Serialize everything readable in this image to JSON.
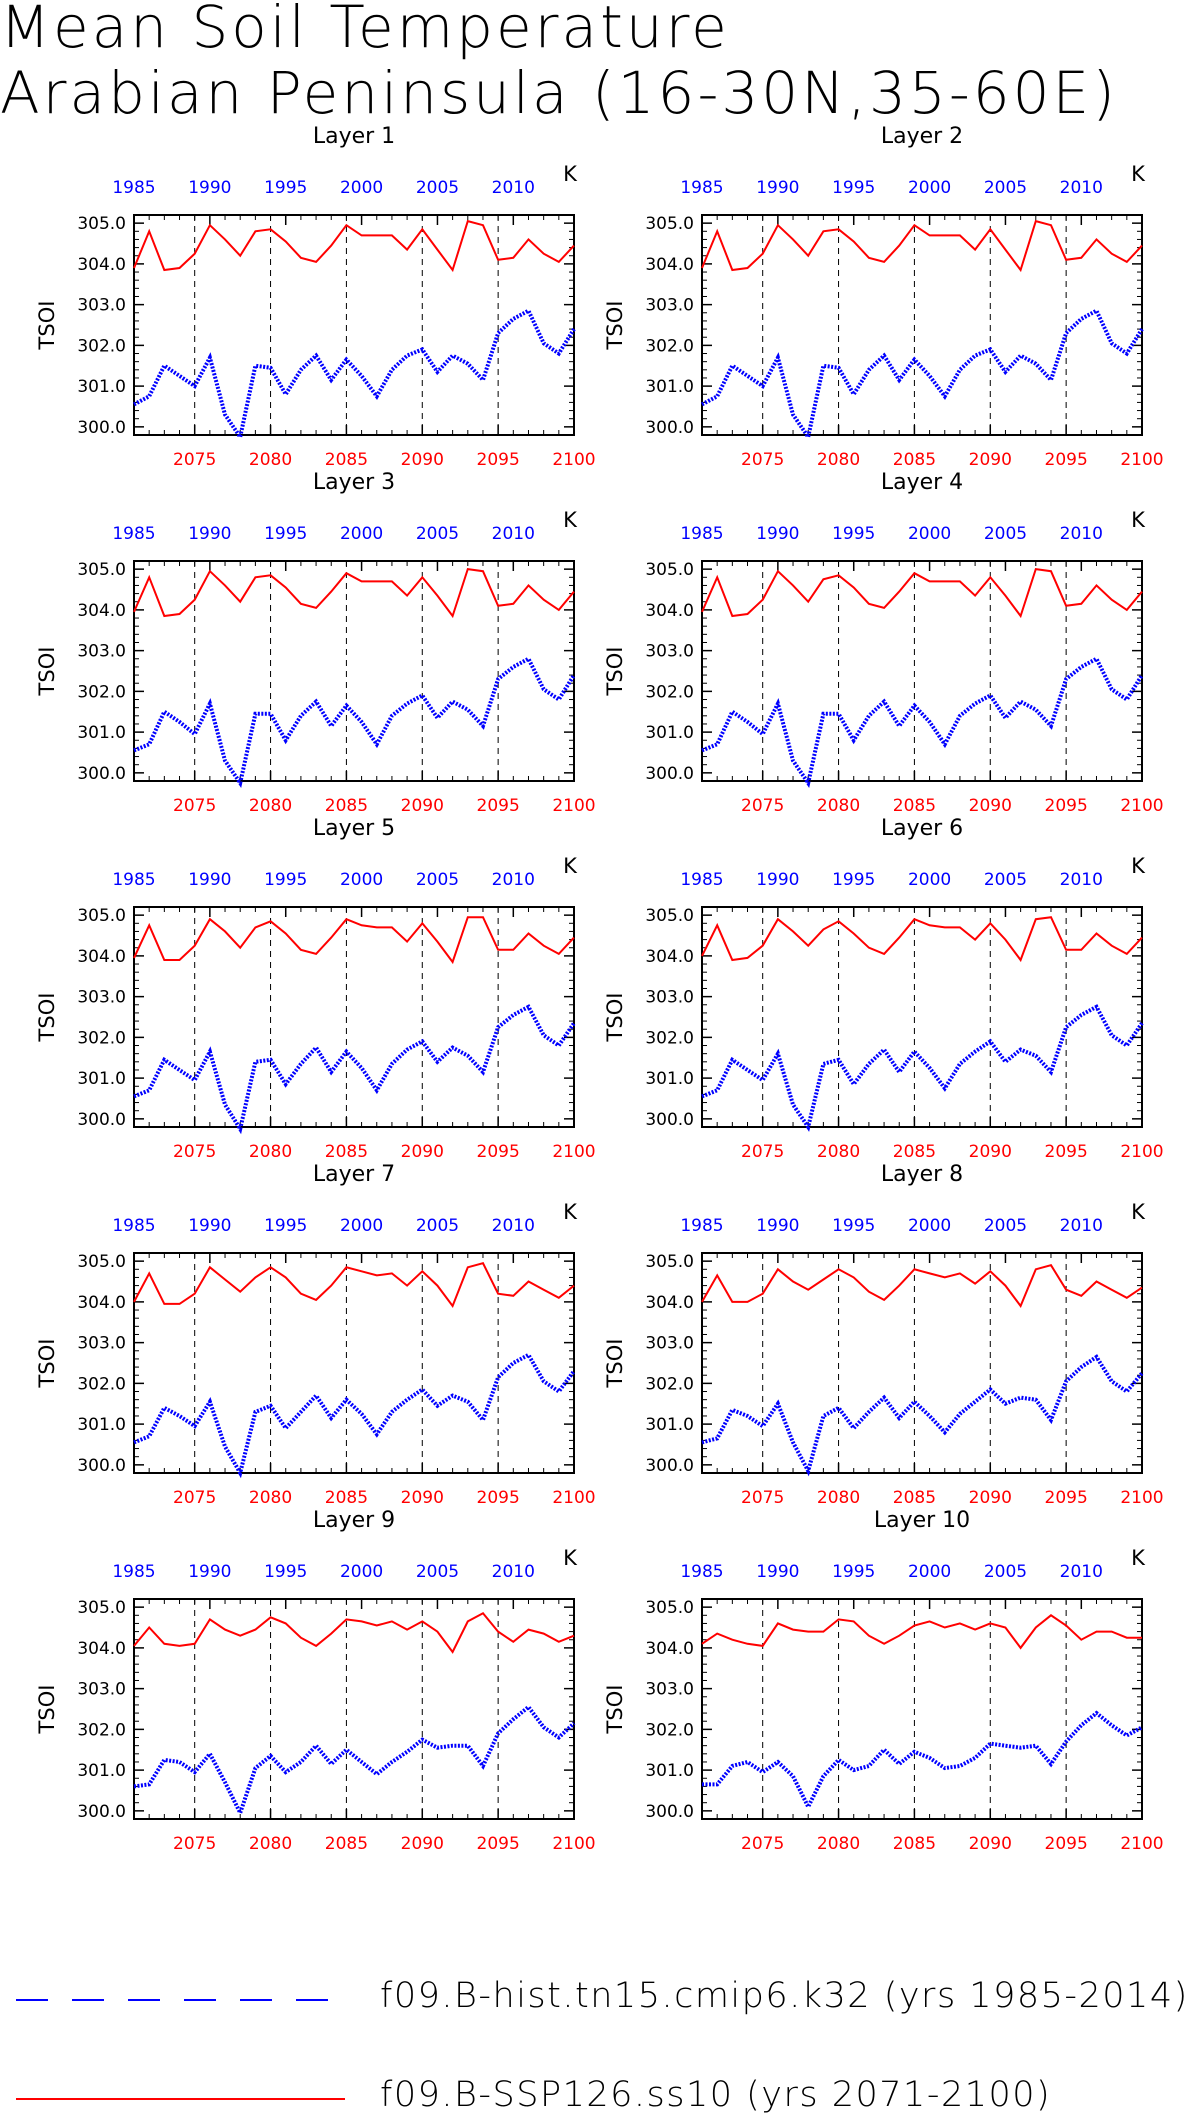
{
  "title": {
    "line1": "Mean Soil Temperature",
    "line2": "Arabian Peninsula (16-30N,35-60E)"
  },
  "legend": [
    {
      "label": "f09.B-hist.tn15.cmip6.k32 (yrs 1985-2014)",
      "color": "#0000ff",
      "style": "dashed"
    },
    {
      "label": "f09.B-SSP126.ss10 (yrs 2071-2100)",
      "color": "#ff0000",
      "style": "solid"
    }
  ],
  "chart_data": {
    "type": "line",
    "ylabel": "TSOI",
    "units": "K",
    "ylim": [
      299.8,
      305.2
    ],
    "yticks": [
      300.0,
      301.0,
      302.0,
      303.0,
      304.0,
      305.0
    ],
    "bottom_axis": {
      "color": "#ff0000",
      "range": [
        2071,
        2100
      ],
      "ticks": [
        2075,
        2080,
        2085,
        2090,
        2095,
        2100
      ]
    },
    "top_axis": {
      "color": "#0000ff",
      "range": [
        1985,
        2014
      ],
      "ticks": [
        1985,
        1990,
        1995,
        2000,
        2005,
        2010
      ]
    },
    "grid": "dashed vertical lines at 2075, 2080, 2085, 2090, 2095",
    "panels": [
      {
        "title": "Layer 1",
        "hist": [
          300.55,
          300.75,
          301.5,
          301.25,
          301.0,
          301.7,
          300.3,
          299.75,
          301.5,
          301.45,
          300.8,
          301.4,
          301.75,
          301.15,
          301.65,
          301.25,
          300.75,
          301.4,
          301.75,
          301.9,
          301.35,
          301.75,
          301.55,
          301.15,
          302.3,
          302.65,
          302.85,
          302.05,
          301.8,
          302.4
        ],
        "future": [
          303.9,
          304.8,
          303.85,
          303.9,
          304.25,
          304.95,
          304.6,
          304.2,
          304.8,
          304.85,
          304.55,
          304.15,
          304.05,
          304.45,
          304.95,
          304.7,
          304.7,
          304.7,
          304.35,
          304.85,
          304.35,
          303.85,
          305.05,
          304.95,
          304.1,
          304.15,
          304.6,
          304.25,
          304.05,
          304.45
        ]
      },
      {
        "title": "Layer 2",
        "hist": [
          300.55,
          300.75,
          301.5,
          301.25,
          301.0,
          301.7,
          300.3,
          299.75,
          301.5,
          301.45,
          300.8,
          301.4,
          301.75,
          301.15,
          301.65,
          301.25,
          300.75,
          301.4,
          301.75,
          301.9,
          301.35,
          301.75,
          301.55,
          301.15,
          302.3,
          302.65,
          302.85,
          302.05,
          301.8,
          302.4
        ],
        "future": [
          303.9,
          304.8,
          303.85,
          303.9,
          304.25,
          304.95,
          304.6,
          304.2,
          304.8,
          304.85,
          304.55,
          304.15,
          304.05,
          304.45,
          304.95,
          304.7,
          304.7,
          304.7,
          304.35,
          304.85,
          304.35,
          303.85,
          305.05,
          304.95,
          304.1,
          304.15,
          304.6,
          304.25,
          304.05,
          304.45
        ]
      },
      {
        "title": "Layer 3",
        "hist": [
          300.55,
          300.7,
          301.5,
          301.25,
          300.95,
          301.7,
          300.3,
          299.75,
          301.45,
          301.45,
          300.8,
          301.4,
          301.75,
          301.15,
          301.65,
          301.25,
          300.7,
          301.4,
          301.7,
          301.9,
          301.35,
          301.75,
          301.55,
          301.15,
          302.3,
          302.6,
          302.8,
          302.05,
          301.8,
          302.4
        ],
        "future": [
          303.95,
          304.8,
          303.85,
          303.9,
          304.25,
          304.95,
          304.6,
          304.2,
          304.8,
          304.85,
          304.55,
          304.15,
          304.05,
          304.45,
          304.9,
          304.7,
          304.7,
          304.7,
          304.35,
          304.8,
          304.35,
          303.85,
          305.0,
          304.95,
          304.1,
          304.15,
          304.6,
          304.25,
          304.0,
          304.45
        ]
      },
      {
        "title": "Layer 4",
        "hist": [
          300.55,
          300.7,
          301.5,
          301.25,
          300.95,
          301.7,
          300.3,
          299.75,
          301.45,
          301.45,
          300.8,
          301.4,
          301.75,
          301.15,
          301.65,
          301.25,
          300.7,
          301.4,
          301.7,
          301.9,
          301.35,
          301.75,
          301.55,
          301.15,
          302.3,
          302.6,
          302.8,
          302.05,
          301.8,
          302.4
        ],
        "future": [
          303.95,
          304.8,
          303.85,
          303.9,
          304.25,
          304.95,
          304.6,
          304.2,
          304.75,
          304.85,
          304.55,
          304.15,
          304.05,
          304.45,
          304.9,
          304.7,
          304.7,
          304.7,
          304.35,
          304.8,
          304.35,
          303.85,
          305.0,
          304.95,
          304.1,
          304.15,
          304.6,
          304.25,
          304.0,
          304.45
        ]
      },
      {
        "title": "Layer 5",
        "hist": [
          300.55,
          300.7,
          301.45,
          301.2,
          300.95,
          301.65,
          300.35,
          299.75,
          301.4,
          301.45,
          300.85,
          301.35,
          301.75,
          301.15,
          301.65,
          301.25,
          300.7,
          301.35,
          301.7,
          301.9,
          301.4,
          301.75,
          301.55,
          301.15,
          302.25,
          302.55,
          302.75,
          302.05,
          301.8,
          302.35
        ],
        "future": [
          303.95,
          304.75,
          303.9,
          303.9,
          304.25,
          304.9,
          304.6,
          304.2,
          304.7,
          304.85,
          304.55,
          304.15,
          304.05,
          304.45,
          304.9,
          304.75,
          304.7,
          304.7,
          304.35,
          304.8,
          304.35,
          303.85,
          304.95,
          304.95,
          304.15,
          304.15,
          304.55,
          304.25,
          304.05,
          304.45
        ]
      },
      {
        "title": "Layer 6",
        "hist": [
          300.55,
          300.7,
          301.45,
          301.2,
          300.95,
          301.6,
          300.35,
          299.8,
          301.35,
          301.45,
          300.85,
          301.35,
          301.7,
          301.15,
          301.65,
          301.25,
          300.75,
          301.35,
          301.65,
          301.9,
          301.4,
          301.7,
          301.55,
          301.15,
          302.25,
          302.55,
          302.75,
          302.05,
          301.8,
          302.35
        ],
        "future": [
          304.0,
          304.75,
          303.9,
          303.95,
          304.25,
          304.9,
          304.6,
          304.25,
          304.65,
          304.85,
          304.55,
          304.2,
          304.05,
          304.45,
          304.9,
          304.75,
          304.7,
          304.7,
          304.4,
          304.8,
          304.4,
          303.9,
          304.9,
          304.95,
          304.15,
          304.15,
          304.55,
          304.25,
          304.05,
          304.45
        ]
      },
      {
        "title": "Layer 7",
        "hist": [
          300.55,
          300.7,
          301.4,
          301.2,
          300.95,
          301.55,
          300.45,
          299.8,
          301.3,
          301.45,
          300.9,
          301.3,
          301.7,
          301.15,
          301.6,
          301.25,
          300.75,
          301.3,
          301.6,
          301.85,
          301.45,
          301.7,
          301.55,
          301.1,
          302.15,
          302.5,
          302.7,
          302.05,
          301.8,
          302.3
        ],
        "future": [
          304.0,
          304.7,
          303.95,
          303.95,
          304.2,
          304.85,
          304.55,
          304.25,
          304.6,
          304.85,
          304.6,
          304.2,
          304.05,
          304.4,
          304.85,
          304.75,
          304.65,
          304.7,
          304.4,
          304.75,
          304.4,
          303.9,
          304.85,
          304.95,
          304.2,
          304.15,
          304.5,
          304.3,
          304.1,
          304.4
        ]
      },
      {
        "title": "Layer 8",
        "hist": [
          300.55,
          300.65,
          301.35,
          301.2,
          300.95,
          301.5,
          300.55,
          299.85,
          301.2,
          301.4,
          300.9,
          301.3,
          301.65,
          301.15,
          301.55,
          301.2,
          300.8,
          301.25,
          301.55,
          301.85,
          301.5,
          301.65,
          301.6,
          301.1,
          302.05,
          302.4,
          302.65,
          302.05,
          301.8,
          302.25
        ],
        "future": [
          304.0,
          304.65,
          304.0,
          304.0,
          304.2,
          304.8,
          304.5,
          304.3,
          304.55,
          304.8,
          304.6,
          304.25,
          304.05,
          304.4,
          304.8,
          304.7,
          304.6,
          304.7,
          304.45,
          304.75,
          304.4,
          303.9,
          304.8,
          304.9,
          304.3,
          304.15,
          304.5,
          304.3,
          304.1,
          304.35
        ]
      },
      {
        "title": "Layer 9",
        "hist": [
          300.6,
          300.65,
          301.25,
          301.2,
          300.95,
          301.4,
          300.7,
          299.95,
          301.05,
          301.35,
          300.95,
          301.2,
          301.6,
          301.15,
          301.5,
          301.2,
          300.9,
          301.2,
          301.45,
          301.75,
          301.55,
          301.6,
          301.6,
          301.1,
          301.9,
          302.25,
          302.55,
          302.05,
          301.8,
          302.15
        ],
        "future": [
          304.05,
          304.5,
          304.1,
          304.05,
          304.1,
          304.7,
          304.45,
          304.3,
          304.45,
          304.75,
          304.6,
          304.25,
          304.05,
          304.35,
          304.7,
          304.65,
          304.55,
          304.65,
          304.45,
          304.65,
          304.4,
          303.9,
          304.65,
          304.85,
          304.4,
          304.15,
          304.45,
          304.35,
          304.15,
          304.3
        ]
      },
      {
        "title": "Layer 10",
        "hist": [
          300.65,
          300.65,
          301.1,
          301.2,
          300.95,
          301.2,
          300.85,
          300.1,
          300.85,
          301.25,
          301.0,
          301.1,
          301.5,
          301.15,
          301.45,
          301.3,
          301.05,
          301.1,
          301.3,
          301.65,
          301.6,
          301.55,
          301.6,
          301.15,
          301.7,
          302.1,
          302.4,
          302.1,
          301.85,
          302.05
        ],
        "future": [
          304.1,
          304.35,
          304.2,
          304.1,
          304.05,
          304.6,
          304.45,
          304.4,
          304.4,
          304.7,
          304.65,
          304.3,
          304.1,
          304.3,
          304.55,
          304.65,
          304.5,
          304.6,
          304.45,
          304.6,
          304.5,
          304.0,
          304.5,
          304.8,
          304.55,
          304.2,
          304.4,
          304.4,
          304.25,
          304.25
        ]
      }
    ]
  }
}
